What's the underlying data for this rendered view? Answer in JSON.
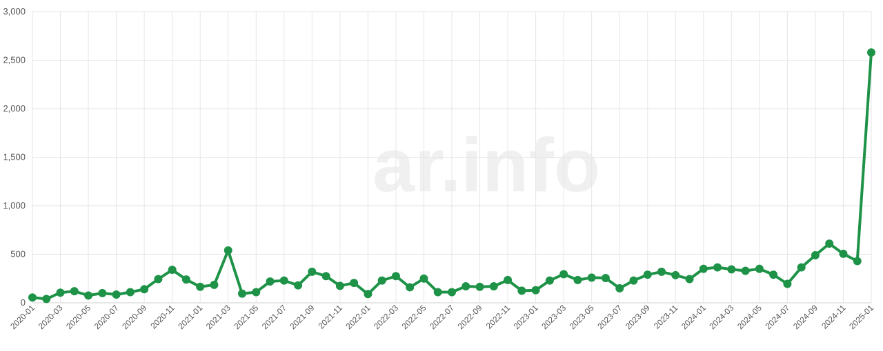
{
  "watermark": {
    "text": "ar.info"
  },
  "colors": {
    "series": "#1e9348",
    "grid": "#e6e6e6",
    "watermark": "#f0f0f0"
  },
  "chart_data": {
    "type": "line",
    "title": "",
    "xlabel": "",
    "ylabel": "",
    "ylim": [
      0,
      3000
    ],
    "yticks": [
      0,
      500,
      1000,
      1500,
      2000,
      2500,
      3000
    ],
    "ytick_labels": [
      "0",
      "500",
      "1,000",
      "1,500",
      "2,000",
      "2,500",
      "3,000"
    ],
    "grid": true,
    "x": [
      "2020-01",
      "2020-02",
      "2020-03",
      "2020-04",
      "2020-05",
      "2020-06",
      "2020-07",
      "2020-08",
      "2020-09",
      "2020-10",
      "2020-11",
      "2020-12",
      "2021-01",
      "2021-02",
      "2021-03",
      "2021-04",
      "2021-05",
      "2021-06",
      "2021-07",
      "2021-08",
      "2021-09",
      "2021-10",
      "2021-11",
      "2021-12",
      "2022-01",
      "2022-02",
      "2022-03",
      "2022-04",
      "2022-05",
      "2022-06",
      "2022-07",
      "2022-08",
      "2022-09",
      "2022-10",
      "2022-11",
      "2022-12",
      "2023-01",
      "2023-02",
      "2023-03",
      "2023-04",
      "2023-05",
      "2023-06",
      "2023-07",
      "2023-08",
      "2023-09",
      "2023-10",
      "2023-11",
      "2023-12",
      "2024-01",
      "2024-02",
      "2024-03",
      "2024-04",
      "2024-05",
      "2024-06",
      "2024-07",
      "2024-08",
      "2024-09",
      "2024-10",
      "2024-11",
      "2024-12",
      "2025-01"
    ],
    "xtick_labels": [
      "2020-01",
      "2020-03",
      "2020-05",
      "2020-07",
      "2020-09",
      "2020-11",
      "2021-01",
      "2021-03",
      "2021-05",
      "2021-07",
      "2021-09",
      "2021-11",
      "2022-01",
      "2022-03",
      "2022-05",
      "2022-07",
      "2022-09",
      "2022-11",
      "2023-01",
      "2023-03",
      "2023-05",
      "2023-07",
      "2023-09",
      "2023-11",
      "2024-01",
      "2024-03",
      "2024-05",
      "2024-07",
      "2024-09",
      "2024-11",
      "2025-01"
    ],
    "series": [
      {
        "color": "#1e9348",
        "values": [
          55,
          40,
          105,
          120,
          75,
          100,
          85,
          110,
          140,
          245,
          340,
          240,
          165,
          185,
          540,
          95,
          110,
          220,
          230,
          180,
          320,
          275,
          175,
          205,
          90,
          230,
          275,
          160,
          250,
          110,
          110,
          170,
          165,
          170,
          235,
          125,
          130,
          230,
          295,
          235,
          260,
          255,
          150,
          230,
          290,
          320,
          285,
          245,
          350,
          365,
          345,
          330,
          350,
          290,
          195,
          365,
          490,
          610,
          505,
          430,
          2580
        ]
      }
    ]
  }
}
